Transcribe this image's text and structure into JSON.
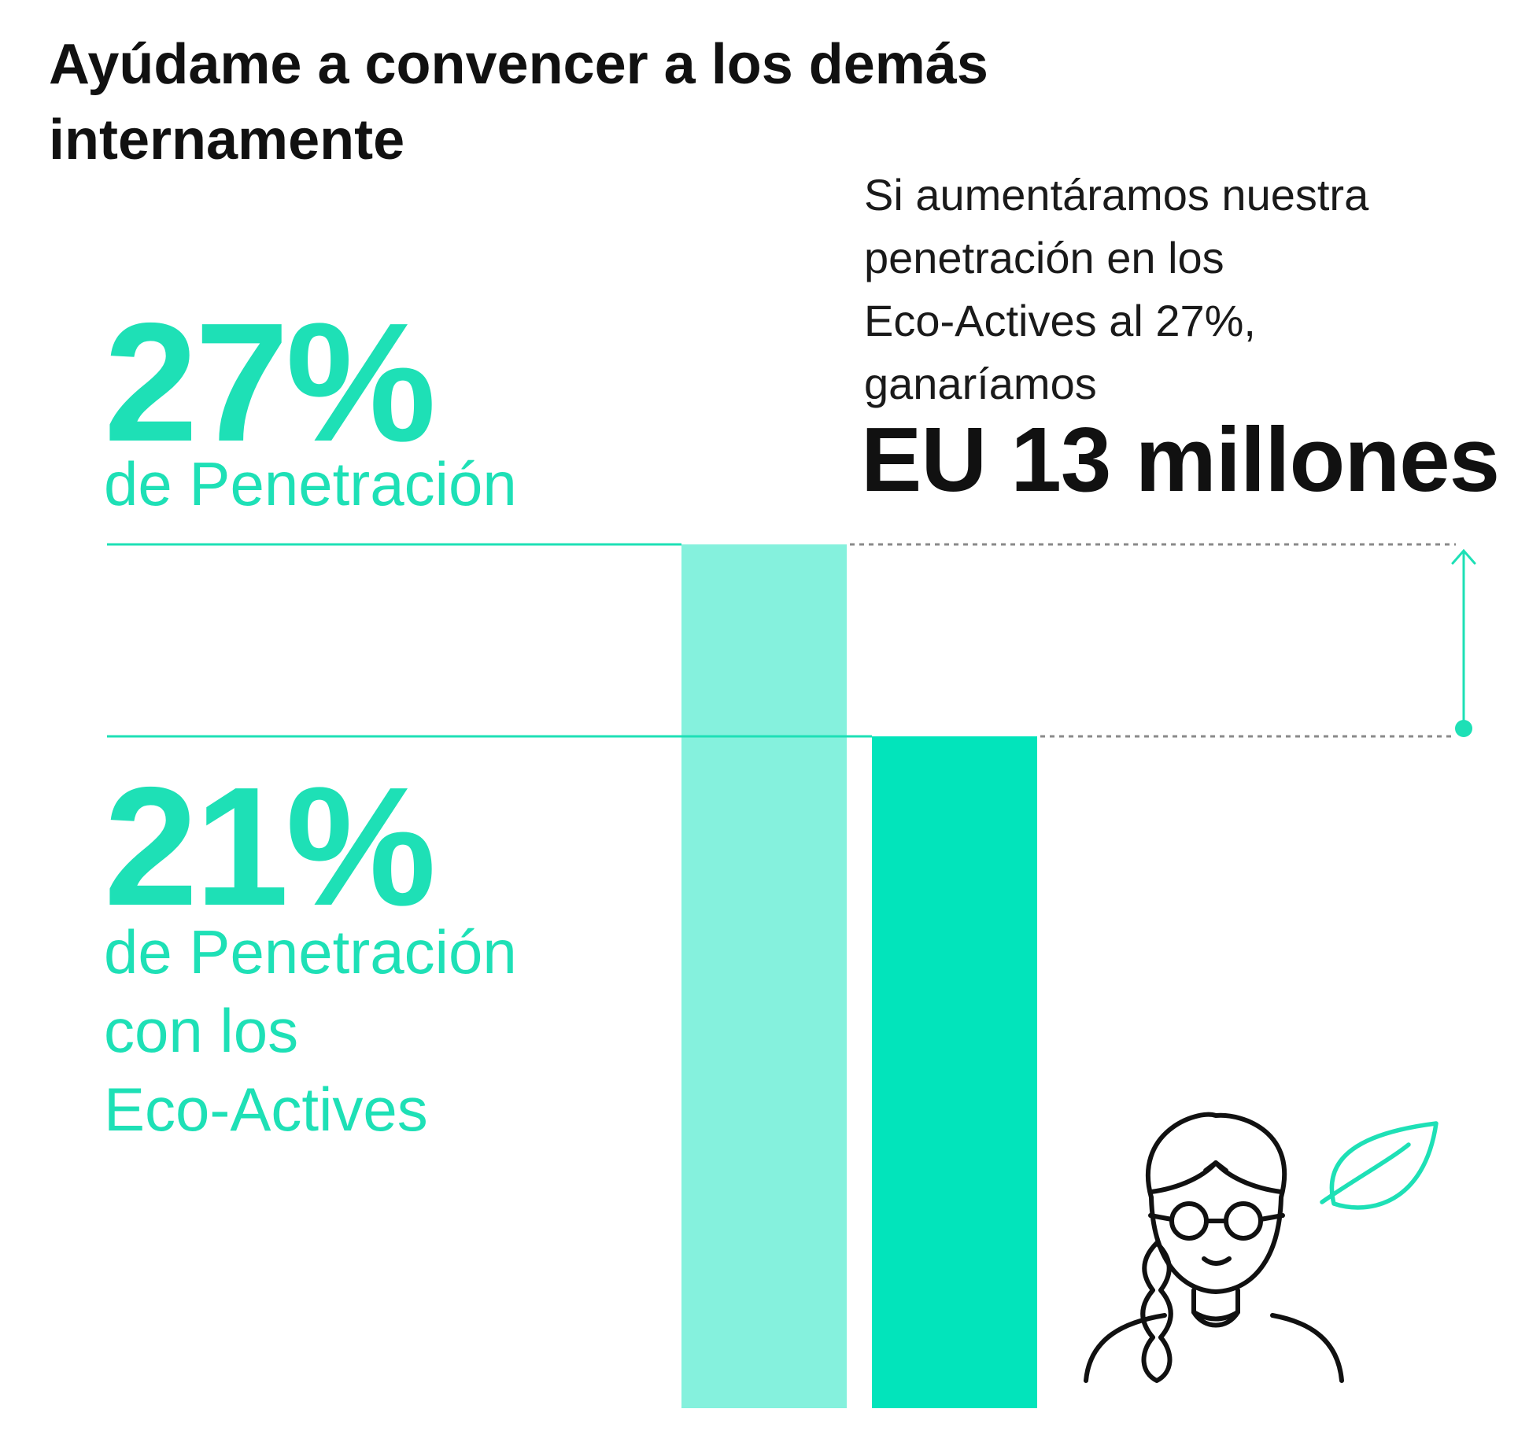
{
  "title": "Ayúdame a convencer a los demás internamente",
  "colors": {
    "light_teal": "#85F1DD",
    "teal": "#02E4BB",
    "text_teal": "#1EE0B6",
    "grey_dash": "#8a8a8a"
  },
  "chart_data": {
    "type": "bar",
    "unit": "%",
    "categories": [
      "27% de Penetración",
      "21% de Penetración con los Eco-Actives"
    ],
    "values": [
      27,
      21
    ],
    "ylim": [
      0,
      27
    ],
    "grid": false,
    "annotations": {
      "target": {
        "value": "27%",
        "label": "de Penetración"
      },
      "current": {
        "value": "21%",
        "label_lines": [
          "de Penetración",
          "con los",
          "Eco-Actives"
        ]
      },
      "callout_text_lines": [
        "Si aumentáramos nuestra",
        "penetración en los",
        "Eco-Actives al 27%,",
        "ganaríamos"
      ],
      "callout_amount": "EU 13 millones"
    }
  },
  "icons": {
    "person": "person-with-glasses-icon",
    "leaf": "leaf-icon"
  }
}
